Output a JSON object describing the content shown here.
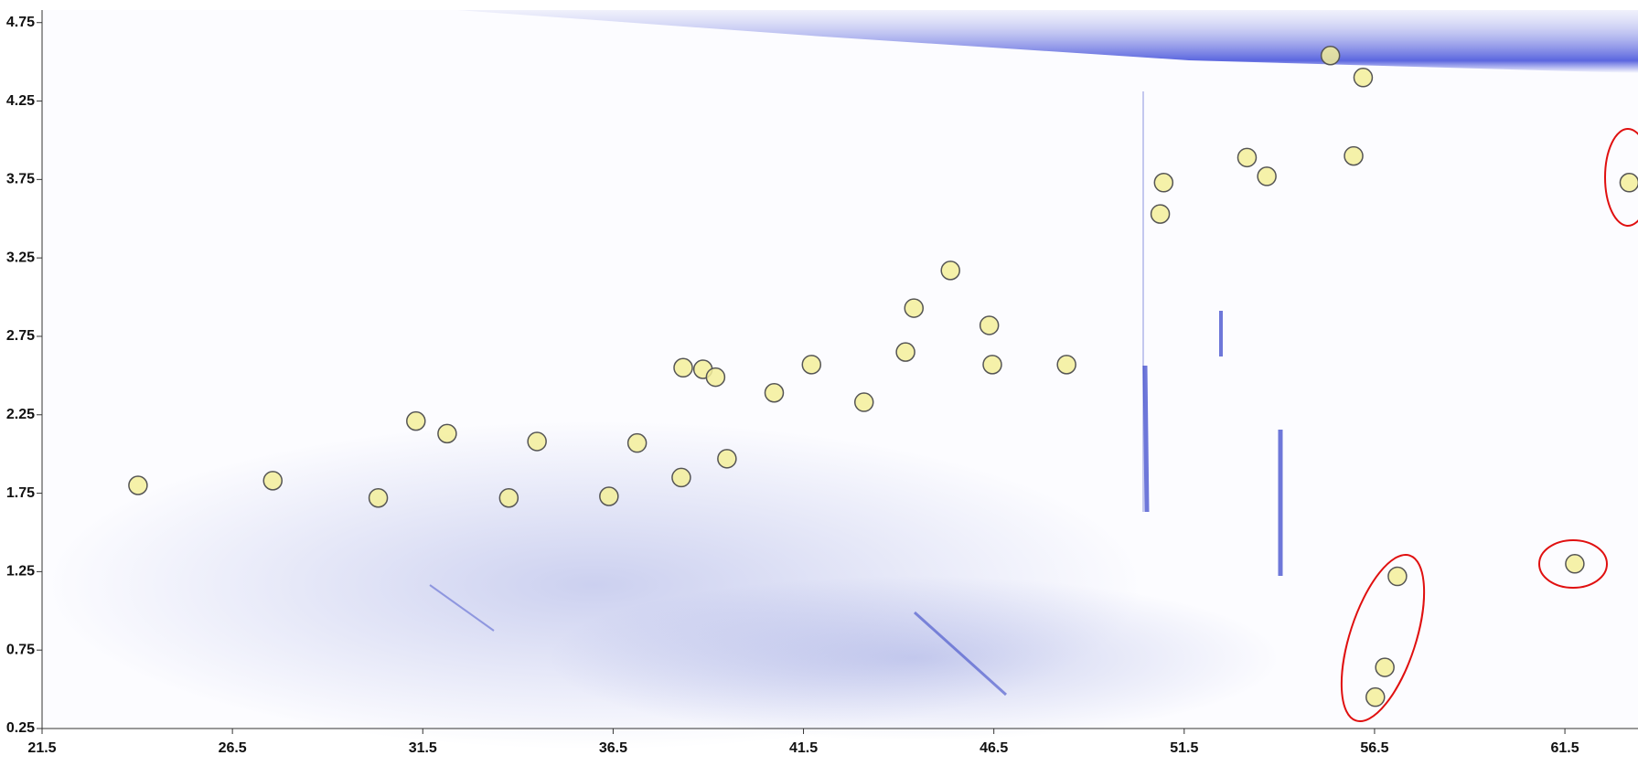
{
  "chart_data": {
    "type": "scatter",
    "xlim": [
      21.5,
      63.42
    ],
    "ylim": [
      0.25,
      4.83
    ],
    "xticks": [
      21.5,
      26.5,
      31.5,
      36.5,
      41.5,
      46.5,
      51.5,
      56.5,
      61.5
    ],
    "yticks": [
      0.25,
      0.75,
      1.25,
      1.75,
      2.25,
      2.75,
      3.25,
      3.75,
      4.25,
      4.75
    ],
    "color": "#f3ee9a",
    "x": [
      24.02,
      27.56,
      30.33,
      31.32,
      32.14,
      33.76,
      34.5,
      36.39,
      37.13,
      38.29,
      38.34,
      38.86,
      39.19,
      39.49,
      40.73,
      41.71,
      43.09,
      44.18,
      44.4,
      45.36,
      46.38,
      46.46,
      48.41,
      50.87,
      50.96,
      53.15,
      53.67,
      55.34,
      55.95,
      56.2,
      57.1,
      56.77,
      56.52,
      61.76,
      63.19
    ],
    "values": [
      1.8,
      1.83,
      1.72,
      2.21,
      2.13,
      1.72,
      2.08,
      1.73,
      2.07,
      1.85,
      2.55,
      2.54,
      2.49,
      1.97,
      2.39,
      2.57,
      2.33,
      2.65,
      2.93,
      3.17,
      2.82,
      2.57,
      2.57,
      3.53,
      3.73,
      3.89,
      3.77,
      4.54,
      3.9,
      4.4,
      1.22,
      0.64,
      0.45,
      1.3,
      3.73
    ]
  }
}
